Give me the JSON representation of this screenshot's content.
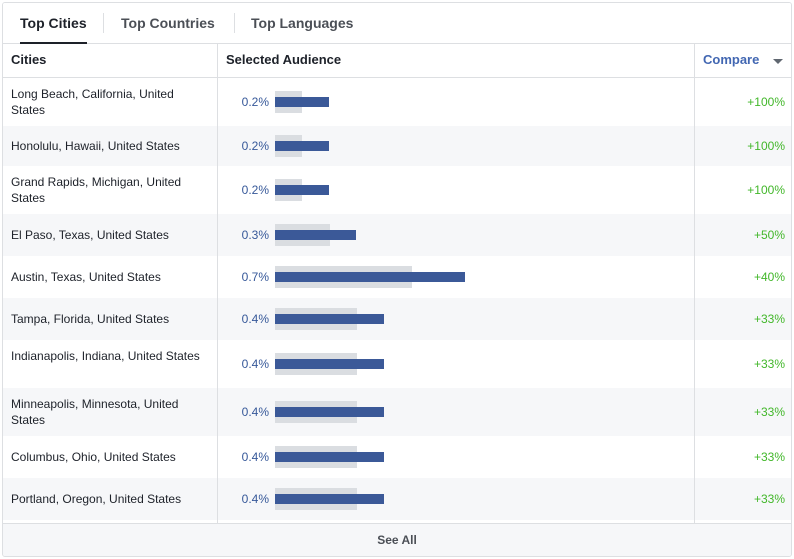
{
  "tabs": [
    {
      "label": "Top Cities",
      "active": true
    },
    {
      "label": "Top Countries",
      "active": false
    },
    {
      "label": "Top Languages",
      "active": false
    }
  ],
  "table": {
    "headers": {
      "cities": "Cities",
      "selected_audience": "Selected Audience",
      "compare": "Compare"
    },
    "rows": [
      {
        "city": "Long Beach, California, United States",
        "audience": "0.2%",
        "compare": "+100%",
        "bar_value": 0.2,
        "track_value": 0.1
      },
      {
        "city": "Honolulu, Hawaii, United States",
        "audience": "0.2%",
        "compare": "+100%",
        "bar_value": 0.2,
        "track_value": 0.1
      },
      {
        "city": "Grand Rapids, Michigan, United States",
        "audience": "0.2%",
        "compare": "+100%",
        "bar_value": 0.2,
        "track_value": 0.1
      },
      {
        "city": "El Paso, Texas, United States",
        "audience": "0.3%",
        "compare": "+50%",
        "bar_value": 0.3,
        "track_value": 0.2
      },
      {
        "city": "Austin, Texas, United States",
        "audience": "0.7%",
        "compare": "+40%",
        "bar_value": 0.7,
        "track_value": 0.5
      },
      {
        "city": "Tampa, Florida, United States",
        "audience": "0.4%",
        "compare": "+33%",
        "bar_value": 0.4,
        "track_value": 0.3
      },
      {
        "city": "Indianapolis, Indiana, United States",
        "audience": "0.4%",
        "compare": "+33%",
        "bar_value": 0.4,
        "track_value": 0.3
      },
      {
        "city": "Minneapolis, Minnesota, United States",
        "audience": "0.4%",
        "compare": "+33%",
        "bar_value": 0.4,
        "track_value": 0.3
      },
      {
        "city": "Columbus, Ohio, United States",
        "audience": "0.4%",
        "compare": "+33%",
        "bar_value": 0.4,
        "track_value": 0.3
      },
      {
        "city": "Portland, Oregon, United States",
        "audience": "0.4%",
        "compare": "+33%",
        "bar_value": 0.4,
        "track_value": 0.3
      }
    ]
  },
  "footer": {
    "see_all": "See All"
  },
  "icons": {
    "compare_dropdown": "caret-down-icon"
  },
  "colors": {
    "bar": "#3b5998",
    "track": "#dadde1",
    "positive": "#42b72a",
    "link": "#4267b2",
    "percent": "#365899"
  }
}
